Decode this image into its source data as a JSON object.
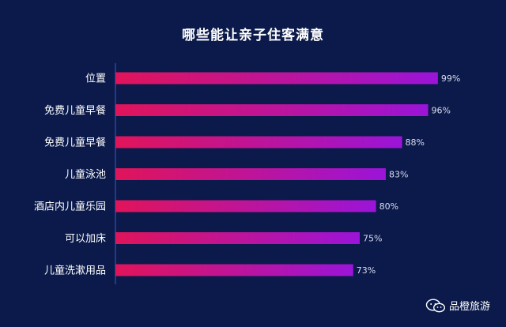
{
  "chart_data": {
    "type": "bar",
    "orientation": "horizontal",
    "title": "哪些能让亲子住客满意",
    "categories": [
      "位置",
      "免费儿童早餐",
      "免费儿童早餐",
      "儿童泳池",
      "酒店内儿童乐园",
      "可以加床",
      "儿童洗漱用品"
    ],
    "values": [
      99,
      96,
      88,
      83,
      80,
      75,
      73
    ],
    "value_labels": [
      "99%",
      "96%",
      "88%",
      "83%",
      "80%",
      "75%",
      "73%"
    ],
    "xlim": [
      0,
      100
    ],
    "grid": false,
    "gradient": [
      "#e0145a",
      "#9b14d8"
    ]
  },
  "watermark": {
    "icon": "wechat-icon",
    "text": "品橙旅游"
  }
}
